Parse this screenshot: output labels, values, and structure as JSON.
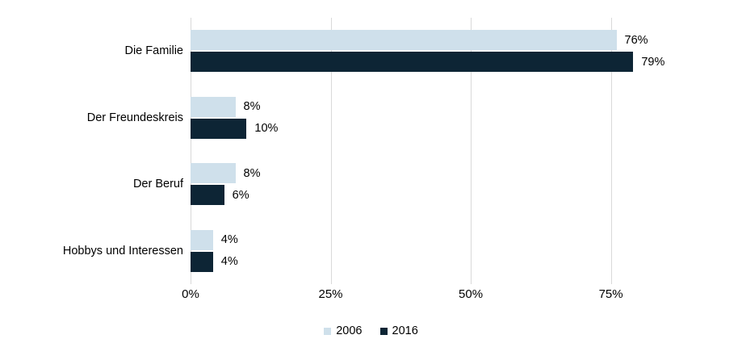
{
  "chart_data": {
    "type": "bar",
    "orientation": "horizontal",
    "title": "",
    "categories": [
      "Die Familie",
      "Der Freundeskreis",
      "Der Beruf",
      "Hobbys und Interessen"
    ],
    "series": [
      {
        "name": "2006",
        "color": "#cfe0eb",
        "values": [
          76,
          8,
          8,
          4
        ],
        "labels": [
          "76%",
          "8%",
          "8%",
          "4%"
        ]
      },
      {
        "name": "2016",
        "color": "#0d2535",
        "values": [
          79,
          10,
          6,
          4
        ],
        "labels": [
          "79%",
          "10%",
          "6%",
          "4%"
        ]
      }
    ],
    "x_ticks": [
      {
        "value": 0,
        "label": "0%"
      },
      {
        "value": 25,
        "label": "25%"
      },
      {
        "value": 50,
        "label": "50%"
      },
      {
        "value": 75,
        "label": "75%"
      }
    ],
    "xlim": [
      0,
      98.4
    ],
    "grid": "vertical",
    "legend_position": "bottom-center",
    "legend_items": [
      "2006",
      "2016"
    ]
  },
  "colors": {
    "background": "#ffffff",
    "gridline": "#d9d9d9",
    "text": "#000000",
    "series_2006": "#cfe0eb",
    "series_2016": "#0d2535"
  }
}
